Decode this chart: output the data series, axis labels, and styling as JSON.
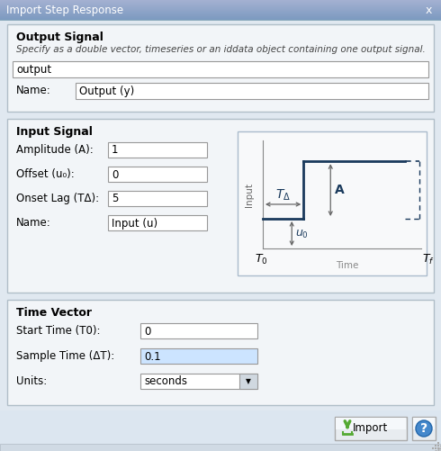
{
  "title": "Import Step Response",
  "bg_color": "#dce6f0",
  "title_bar_grad_top": "#6699cc",
  "title_bar_grad_bot": "#4477aa",
  "title_text_color": "#ffffff",
  "section_bg": "#f0f0f0",
  "section_border": "#b8c8d8",
  "dialog_bg": "#dce6f0",
  "input_bg": "#ffffff",
  "input_border": "#aaaaaa",
  "highlight_input_bg": "#cce4ff",
  "output_signal_label": "Output Signal",
  "output_desc": "Specify as a double vector, timeseries or an iddata object containing one output signal.",
  "output_field": "output",
  "output_name_label": "Name:",
  "output_name_value": "Output (y)",
  "input_signal_label": "Input Signal",
  "amplitude_label": "Amplitude (A):",
  "amplitude_value": "1",
  "offset_label": "Offset (u₀):",
  "offset_value": "0",
  "onset_label": "Onset Lag (TΔ):",
  "onset_value": "5",
  "name_label": "Name:",
  "name_value": "Input (u)",
  "time_vector_label": "Time Vector",
  "start_time_label": "Start Time (T0):",
  "start_time_value": "0",
  "sample_time_label": "Sample Time (ΔT):",
  "sample_time_value": "0.1",
  "units_label": "Units:",
  "units_value": "seconds",
  "import_btn": "Import",
  "plot_line_color": "#1a3a5c",
  "plot_bg": "#ffffff",
  "arrow_color": "#666666",
  "label_color": "#1a3a5c"
}
